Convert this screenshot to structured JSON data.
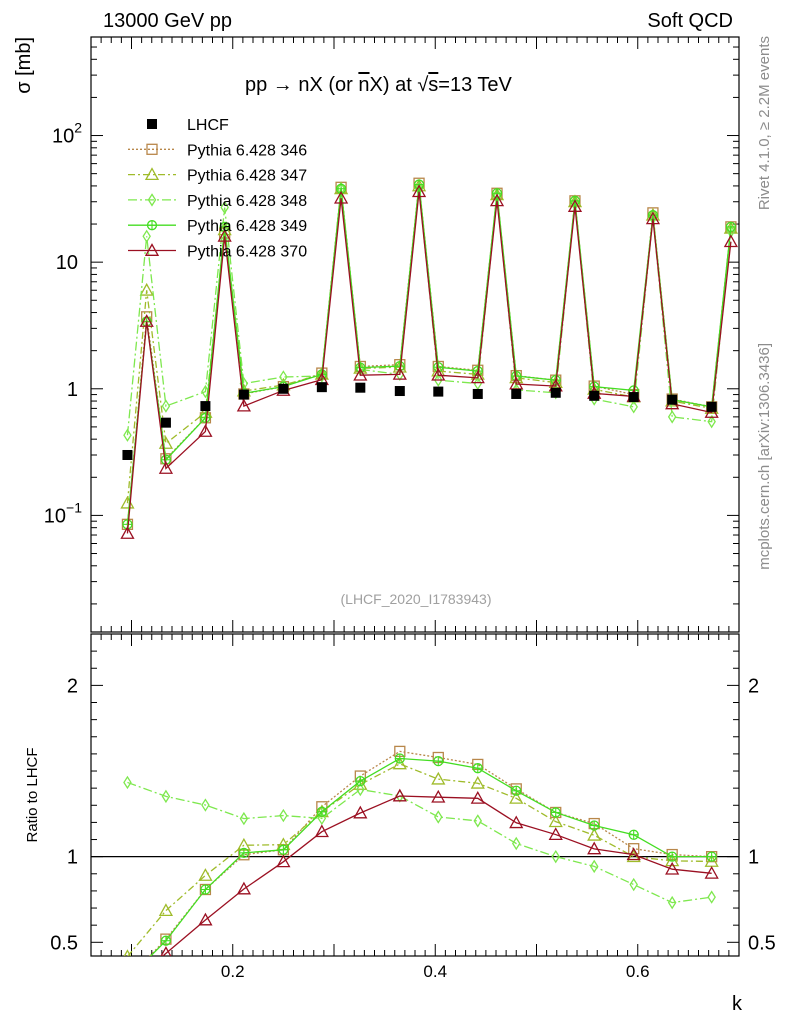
{
  "header": {
    "left": "13000 GeV pp",
    "right": "Soft QCD"
  },
  "title": {
    "prefix": "pp → nX (or ",
    "nbar": "n",
    "mid": "X) at ",
    "sqrt": "s",
    "suffix": "=13 TeV"
  },
  "side_text": {
    "top": "Rivet 4.1.0, ≥ 2.2M events",
    "bottom": "mcplots.cern.ch [arXiv:1306.3436]"
  },
  "analysis_id": "(LHCF_2020_I1783943)",
  "axis_labels": {
    "y_main": "σ [mb]",
    "y_ratio": "Ratio to LHCF",
    "x": "k"
  },
  "tick_labels": {
    "x": [
      "0.2",
      "0.4",
      "0.6"
    ],
    "y_main_mantissa": [
      "10",
      "10",
      "1",
      "10"
    ],
    "y_main_exponent": [
      "−1",
      "2"
    ],
    "y_main_plain": [
      "1",
      "10"
    ],
    "y_ratio": [
      "0.5",
      "1",
      "2"
    ]
  },
  "colors": {
    "lhcf": "#000000",
    "py346": "#b8874a",
    "py347": "#9fbb2a",
    "py348": "#7ee84e",
    "py349": "#44dd22",
    "py370": "#9b1022"
  },
  "chart_data": {
    "type": "line",
    "title": "pp → nX (or n̄X) at √s=13 TeV",
    "xlabel": "k",
    "ylabel": "σ [mb]",
    "ratio_ylabel": "Ratio to LHCF",
    "xlim": [
      0.06,
      0.7
    ],
    "ylim_main": [
      0.012,
      600
    ],
    "ylim_ratio": [
      0.42,
      2.3
    ],
    "yscale": "log",
    "legend_position": "top-left",
    "x": [
      0.096,
      0.115,
      0.134,
      0.173,
      0.192,
      0.211,
      0.25,
      0.288,
      0.307,
      0.326,
      0.365,
      0.384,
      0.403,
      0.442,
      0.461,
      0.48,
      0.519,
      0.538,
      0.557,
      0.596,
      0.615,
      0.634,
      0.673,
      0.692
    ],
    "series": [
      {
        "name": "LHCF",
        "style": "data",
        "values": [
          0.3,
          null,
          0.54,
          0.73,
          null,
          0.9,
          1.0,
          1.03,
          null,
          1.02,
          0.96,
          null,
          0.95,
          0.91,
          null,
          0.91,
          0.93,
          null,
          0.88,
          0.86,
          null,
          0.82,
          0.72,
          null
        ]
      },
      {
        "name": "Pythia 6.428 346",
        "style": "dotted",
        "marker": "square",
        "values": [
          0.085,
          3.7,
          0.28,
          0.59,
          17,
          0.91,
          1.04,
          1.33,
          39,
          1.5,
          1.55,
          42,
          1.5,
          1.4,
          35,
          1.27,
          1.17,
          30.5,
          1.05,
          0.9,
          24.5,
          0.83,
          0.72,
          19
        ]
      },
      {
        "name": "Pythia 6.428 347",
        "style": "dashdot",
        "marker": "triangle",
        "values": [
          0.125,
          6.0,
          0.37,
          0.65,
          18,
          0.96,
          1.07,
          1.3,
          38,
          1.45,
          1.48,
          40,
          1.38,
          1.3,
          34,
          1.22,
          1.12,
          30,
          0.99,
          0.86,
          23.5,
          0.8,
          0.7,
          18.5
        ]
      },
      {
        "name": "Pythia 6.428 348",
        "style": "dashdot2",
        "marker": "diamond",
        "values": [
          0.43,
          16,
          0.73,
          0.95,
          27,
          1.1,
          1.24,
          1.26,
          38,
          1.42,
          1.3,
          38,
          1.17,
          1.1,
          33,
          0.98,
          0.93,
          29,
          0.83,
          0.72,
          22.5,
          0.6,
          0.55,
          17.5
        ]
      },
      {
        "name": "Pythia 6.428 349",
        "style": "solid",
        "marker": "circle",
        "values": [
          0.085,
          3.4,
          0.275,
          0.59,
          19,
          0.92,
          1.04,
          1.3,
          38,
          1.47,
          1.51,
          41,
          1.48,
          1.38,
          35,
          1.26,
          1.17,
          30.5,
          1.04,
          0.97,
          23.5,
          0.82,
          0.72,
          19
        ]
      },
      {
        "name": "Pythia 6.428 370",
        "style": "solid",
        "marker": "triangle",
        "values": [
          0.072,
          3.4,
          0.235,
          0.46,
          16,
          0.73,
          0.97,
          1.18,
          32,
          1.28,
          1.3,
          36,
          1.28,
          1.22,
          30.5,
          1.09,
          1.05,
          27.5,
          0.92,
          0.87,
          22,
          0.76,
          0.65,
          14.5
        ]
      }
    ]
  }
}
